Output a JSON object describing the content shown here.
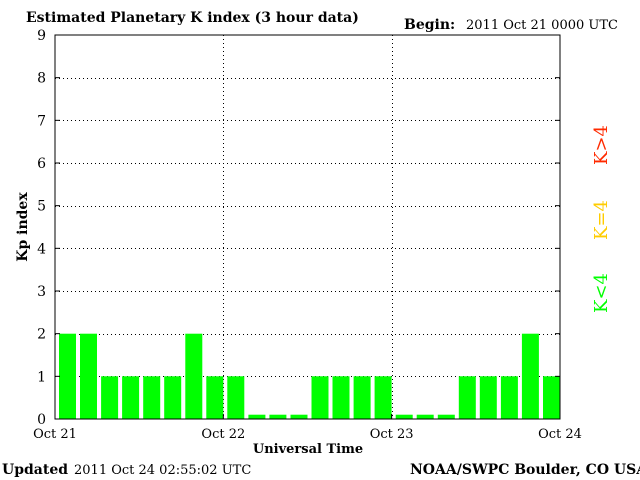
{
  "header": {
    "title": "Estimated Planetary K index (3 hour data)",
    "begin_label": "Begin:",
    "begin_value": "2011 Oct 21 0000 UTC"
  },
  "footer": {
    "updated_label": "Updated",
    "updated_value": "2011 Oct 24 02:55:02 UTC",
    "source": "NOAA/SWPC Boulder, CO USA"
  },
  "legend": {
    "high": {
      "text": "K>4",
      "color": "#ff2a00"
    },
    "mid": {
      "text": "K=4",
      "color": "#ffcc00"
    },
    "low": {
      "text": "K<4",
      "color": "#00ff00"
    }
  },
  "chart_data": {
    "type": "bar",
    "xlabel": "Universal Time",
    "ylabel": "Kp index",
    "ylim": [
      0,
      9
    ],
    "yticks": [
      0,
      1,
      2,
      3,
      4,
      5,
      6,
      7,
      8,
      9
    ],
    "x_tick_labels": [
      "Oct 21",
      "Oct 22",
      "Oct 23",
      "Oct 24"
    ],
    "grid": "dotted vertical at day boundaries, dotted horizontal at each integer",
    "bar_color": "#00ff00",
    "values": [
      2,
      2,
      1,
      1,
      1,
      1,
      2,
      1,
      1,
      0.1,
      0.1,
      0.1,
      1,
      1,
      1,
      1,
      0.1,
      0.1,
      0.1,
      1,
      1,
      1,
      2,
      1
    ]
  }
}
